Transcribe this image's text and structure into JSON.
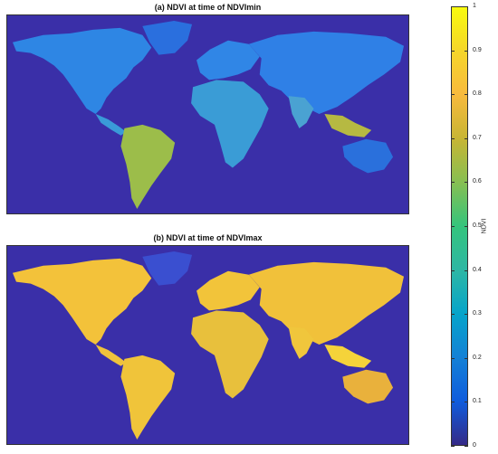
{
  "panels": [
    {
      "title": "(a) NDVI at time of NDVImin"
    },
    {
      "title": "(b) NDVI at time of NDVImax"
    }
  ],
  "colorbar": {
    "label": "NDVI",
    "ticks": [
      "1",
      "0.9",
      "0.8",
      "0.7",
      "0.6",
      "0.5",
      "0.4",
      "0.3",
      "0.2",
      "0.1",
      "0"
    ],
    "range": [
      0,
      1
    ],
    "colormap": "parula"
  },
  "colors": {
    "ocean": "#3a2fa8",
    "low_veg": "#2f7fe8",
    "mid_veg": "#39b8c0",
    "high_veg": "#f2b83a",
    "max_veg": "#fae61f"
  }
}
